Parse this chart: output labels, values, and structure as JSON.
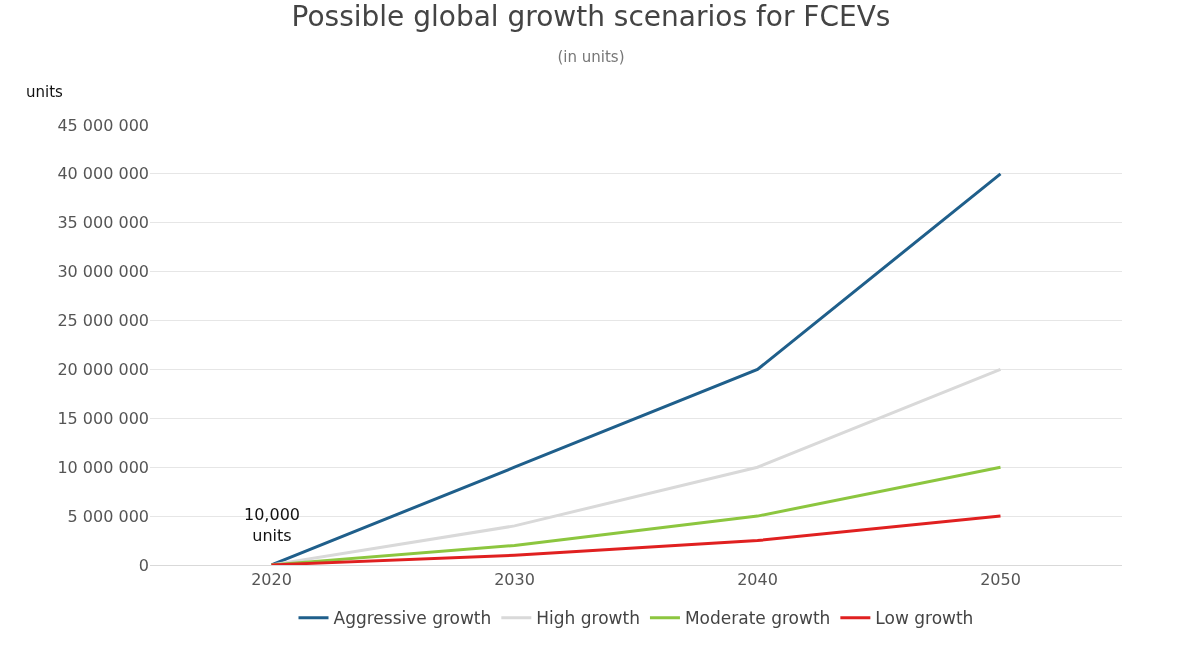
{
  "chart_data": {
    "type": "line",
    "title": "Possible global growth scenarios for FCEVs",
    "subtitle": "(in units)",
    "ylabel": "units",
    "categories": [
      "2020",
      "2030",
      "2040",
      "2050"
    ],
    "series": [
      {
        "name": "Aggressive growth",
        "color": "#1f5f8b",
        "values": [
          10000,
          10000000,
          20000000,
          40000000
        ]
      },
      {
        "name": "High growth",
        "color": "#d9d9d9",
        "values": [
          10000,
          4000000,
          10000000,
          20000000
        ]
      },
      {
        "name": "Moderate growth",
        "color": "#8cc63f",
        "values": [
          10000,
          2000000,
          5000000,
          10000000
        ]
      },
      {
        "name": "Low growth",
        "color": "#e02020",
        "values": [
          10000,
          1000000,
          2500000,
          5000000
        ]
      }
    ],
    "ylim": [
      0,
      45000000
    ],
    "yticks": [
      {
        "value": 0,
        "label": "0"
      },
      {
        "value": 5000000,
        "label": "5 000 000"
      },
      {
        "value": 10000000,
        "label": "10 000 000"
      },
      {
        "value": 15000000,
        "label": "15 000 000"
      },
      {
        "value": 20000000,
        "label": "20 000 000"
      },
      {
        "value": 25000000,
        "label": "25 000 000"
      },
      {
        "value": 30000000,
        "label": "30 000 000"
      },
      {
        "value": 35000000,
        "label": "35 000 000"
      },
      {
        "value": 40000000,
        "label": "40 000 000"
      },
      {
        "value": 45000000,
        "label": "45 000 000"
      }
    ],
    "annotations": [
      {
        "text": "10,000 units",
        "x": "2020",
        "y": 10000
      }
    ],
    "grid": "y",
    "legend": "bottom",
    "marker": "none",
    "line_style": "solid"
  }
}
